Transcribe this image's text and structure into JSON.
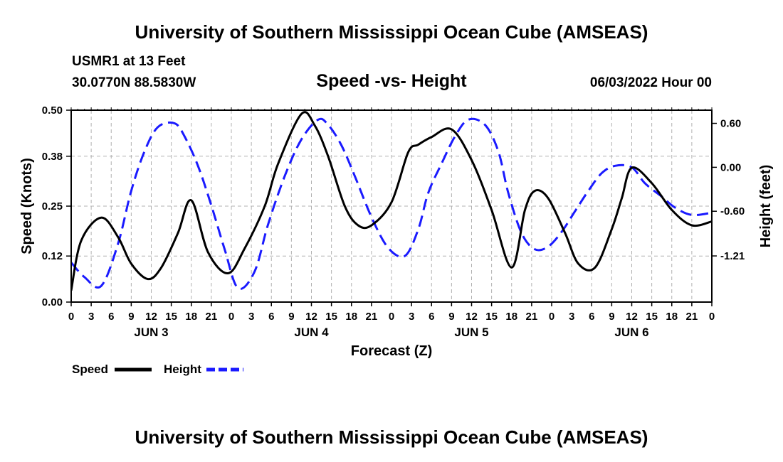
{
  "header": {
    "main_title": "University of Southern Mississippi Ocean Cube (AMSEAS)",
    "station": "USMR1 at 13 Feet",
    "latlon": "30.0770N  88.5830W",
    "chart_title": "Speed -vs- Height",
    "datetime": "06/03/2022 Hour 00"
  },
  "footer": {
    "title": "University of Southern Mississippi Ocean Cube (AMSEAS)"
  },
  "colors": {
    "speed": "#000000",
    "height": "#1a1aff",
    "grid": "#b0b0b0"
  },
  "chart_data": {
    "type": "line",
    "title": "Speed -vs- Height",
    "xlabel": "Forecast (Z)",
    "ylabel": "Speed (Knots)",
    "y2label": "Height (feet)",
    "x_range_hours": [
      0,
      96
    ],
    "ylim": [
      0,
      0.5
    ],
    "yticks": [
      "0.00",
      "0.12",
      "0.25",
      "0.38",
      "0.50"
    ],
    "y2lim": [
      -1.84,
      0.78
    ],
    "y2ticks": [
      "0.60",
      "0.00",
      "-0.60",
      "-1.21"
    ],
    "y2tick_values": [
      0.6,
      0.0,
      -0.6,
      -1.21
    ],
    "xtick_labels": [
      "0",
      "3",
      "6",
      "9",
      "12",
      "15",
      "18",
      "21",
      "0",
      "3",
      "6",
      "9",
      "12",
      "15",
      "18",
      "21",
      "0",
      "3",
      "6",
      "9",
      "12",
      "15",
      "18",
      "21",
      "0",
      "3",
      "6",
      "9",
      "12",
      "15",
      "18",
      "21",
      "0"
    ],
    "day_labels": [
      {
        "label": "JUN 3",
        "hour": 12
      },
      {
        "label": "JUN 4",
        "hour": 36
      },
      {
        "label": "JUN 5",
        "hour": 60
      },
      {
        "label": "JUN 6",
        "hour": 84
      }
    ],
    "grid": true,
    "legend": [
      {
        "label": "Speed",
        "style": "solid",
        "color": "#000000"
      },
      {
        "label": "Height",
        "style": "dashed",
        "color": "#1a1aff"
      }
    ],
    "series": [
      {
        "name": "Speed",
        "axis": "left",
        "style": "solid",
        "hours": [
          0,
          1.5,
          4.5,
          7,
          9,
          11.5,
          13.5,
          16,
          18,
          20.5,
          23.5,
          26,
          29,
          31,
          34.5,
          36.5,
          38.5,
          41,
          43,
          45,
          48,
          50.5,
          52,
          54,
          57,
          60,
          63,
          66,
          68,
          69.5,
          71.5,
          74,
          76,
          78.5,
          81,
          82.5,
          84,
          87,
          90,
          93,
          96
        ],
        "values": [
          0.03,
          0.16,
          0.22,
          0.17,
          0.1,
          0.06,
          0.09,
          0.18,
          0.265,
          0.13,
          0.075,
          0.14,
          0.25,
          0.36,
          0.49,
          0.46,
          0.38,
          0.25,
          0.2,
          0.2,
          0.26,
          0.39,
          0.41,
          0.43,
          0.45,
          0.37,
          0.24,
          0.09,
          0.24,
          0.29,
          0.27,
          0.18,
          0.1,
          0.09,
          0.19,
          0.27,
          0.35,
          0.31,
          0.24,
          0.2,
          0.21
        ]
      },
      {
        "name": "Height",
        "axis": "right",
        "style": "dashed",
        "hours": [
          0,
          2,
          4.5,
          7,
          9,
          11,
          13,
          15.5,
          17,
          19,
          21,
          23,
          25,
          27.5,
          29.5,
          32,
          34.5,
          37,
          38.5,
          40.5,
          42.5,
          45,
          47.5,
          50,
          52,
          53.5,
          55.5,
          57.5,
          59.5,
          62,
          64,
          65.5,
          67.5,
          69.5,
          71.5,
          73.5,
          75.5,
          77.5,
          79.5,
          81.5,
          84,
          86,
          88.5,
          90.5,
          93,
          96
        ],
        "values": [
          -1.3,
          -1.5,
          -1.62,
          -1.05,
          -0.32,
          0.22,
          0.55,
          0.6,
          0.42,
          0.02,
          -0.52,
          -1.12,
          -1.65,
          -1.42,
          -0.78,
          -0.12,
          0.38,
          0.65,
          0.58,
          0.3,
          -0.12,
          -0.68,
          -1.1,
          -1.21,
          -0.85,
          -0.35,
          0.05,
          0.42,
          0.65,
          0.58,
          0.22,
          -0.35,
          -0.9,
          -1.12,
          -1.08,
          -0.88,
          -0.6,
          -0.32,
          -0.08,
          0.02,
          0.0,
          -0.22,
          -0.4,
          -0.55,
          -0.65,
          -0.62
        ]
      }
    ]
  }
}
